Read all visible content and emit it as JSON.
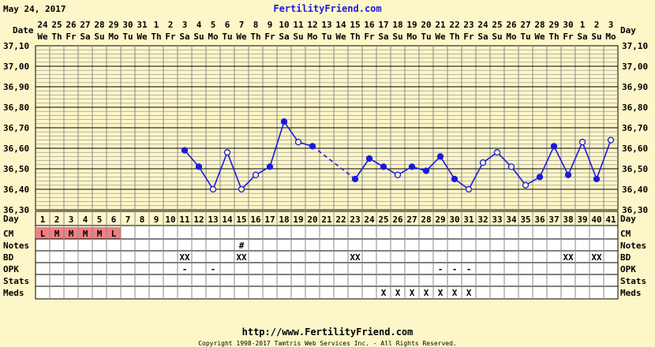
{
  "header": {
    "date": "May 24, 2017",
    "site": "FertilityFriend.com"
  },
  "footer": {
    "url": "http://www.FertilityFriend.com",
    "copyright": "Copyright 1998-2017 Tamtris Web Services Inc. - All Rights Reserved."
  },
  "labels": {
    "date": "Date",
    "day": "Day",
    "cm": "CM",
    "notes": "Notes",
    "bd": "BD",
    "opk": "OPK",
    "stats": "Stats",
    "meds": "Meds"
  },
  "colors": {
    "background": "#fdf6c8",
    "grid": "#8a8a8a",
    "line": "#1a1adc",
    "header_text": "#1a1adc",
    "cm_fill": "#f08080"
  },
  "columns": {
    "dates": [
      "24",
      "25",
      "26",
      "27",
      "28",
      "29",
      "30",
      "31",
      "1",
      "2",
      "3",
      "4",
      "5",
      "6",
      "7",
      "8",
      "9",
      "10",
      "11",
      "12",
      "13",
      "14",
      "15",
      "16",
      "17",
      "18",
      "19",
      "20",
      "21",
      "22",
      "23",
      "24",
      "25",
      "26",
      "27",
      "28",
      "29",
      "30",
      "1",
      "2",
      "3"
    ],
    "weekdays": [
      "We",
      "Th",
      "Fr",
      "Sa",
      "Su",
      "Mo",
      "Tu",
      "We",
      "Th",
      "Fr",
      "Sa",
      "Su",
      "Mo",
      "Tu",
      "We",
      "Th",
      "Fr",
      "Sa",
      "Su",
      "Mo",
      "Tu",
      "We",
      "Th",
      "Fr",
      "Sa",
      "Su",
      "Mo",
      "Tu",
      "We",
      "Th",
      "Fr",
      "Sa",
      "Su",
      "Mo",
      "Tu",
      "We",
      "Th",
      "Fr",
      "Sa",
      "Su",
      "Mo"
    ],
    "cycle_days": [
      "1",
      "2",
      "3",
      "4",
      "5",
      "6",
      "7",
      "8",
      "9",
      "10",
      "11",
      "12",
      "13",
      "14",
      "15",
      "16",
      "17",
      "18",
      "19",
      "20",
      "21",
      "22",
      "23",
      "24",
      "25",
      "26",
      "27",
      "28",
      "29",
      "30",
      "31",
      "32",
      "33",
      "34",
      "35",
      "36",
      "37",
      "38",
      "39",
      "40",
      "41"
    ]
  },
  "rows": {
    "cm": [
      "L",
      "M",
      "M",
      "M",
      "M",
      "L",
      "",
      "",
      "",
      "",
      "",
      "",
      "",
      "",
      "",
      "",
      "",
      "",
      "",
      "",
      "",
      "",
      "",
      "",
      "",
      "",
      "",
      "",
      "",
      "",
      "",
      "",
      "",
      "",
      "",
      "",
      "",
      "",
      "",
      "",
      ""
    ],
    "notes": [
      "",
      "",
      "",
      "",
      "",
      "",
      "",
      "",
      "",
      "",
      "",
      "",
      "",
      "",
      "#",
      "",
      "",
      "",
      "",
      "",
      "",
      "",
      "",
      "",
      "",
      "",
      "",
      "",
      "",
      "",
      "",
      "",
      "",
      "",
      "",
      "",
      "",
      "",
      "",
      "",
      ""
    ],
    "bd": [
      "",
      "",
      "",
      "",
      "",
      "",
      "",
      "",
      "",
      "",
      "XX",
      "",
      "",
      "",
      "XX",
      "",
      "",
      "",
      "",
      "",
      "",
      "",
      "XX",
      "",
      "",
      "",
      "",
      "",
      "",
      "",
      "",
      "",
      "",
      "",
      "",
      "",
      "",
      "XX",
      "",
      "XX",
      ""
    ],
    "opk": [
      "",
      "",
      "",
      "",
      "",
      "",
      "",
      "",
      "",
      "",
      "-",
      "",
      "-",
      "",
      "",
      "",
      "",
      "",
      "",
      "",
      "",
      "",
      "",
      "",
      "",
      "",
      "",
      "",
      "-",
      "-",
      "-",
      "",
      "",
      "",
      "",
      "",
      "",
      "",
      "",
      "",
      ""
    ],
    "stats": [
      "",
      "",
      "",
      "",
      "",
      "",
      "",
      "",
      "",
      "",
      "",
      "",
      "",
      "",
      "",
      "",
      "",
      "",
      "",
      "",
      "",
      "",
      "",
      "",
      "",
      "",
      "",
      "",
      "",
      "",
      "",
      "",
      "",
      "",
      "",
      "",
      "",
      "",
      "",
      "",
      ""
    ],
    "meds": [
      "",
      "",
      "",
      "",
      "",
      "",
      "",
      "",
      "",
      "",
      "",
      "",
      "",
      "",
      "",
      "",
      "",
      "",
      "",
      "",
      "",
      "",
      "",
      "",
      "X",
      "X",
      "X",
      "X",
      "X",
      "X",
      "X",
      "",
      "",
      "",
      "",
      "",
      "",
      "",
      "",
      "",
      ""
    ]
  },
  "chart_data": {
    "type": "line",
    "title": "",
    "xlabel": "Day",
    "ylabel": "",
    "x": [
      1,
      2,
      3,
      4,
      5,
      6,
      7,
      8,
      9,
      10,
      11,
      12,
      13,
      14,
      15,
      16,
      17,
      18,
      19,
      20,
      21,
      22,
      23,
      24,
      25,
      26,
      27,
      28,
      29,
      30,
      31,
      32,
      33,
      34,
      35,
      36,
      37,
      38,
      39,
      40,
      41
    ],
    "ylim": [
      36.3,
      37.1
    ],
    "y_ticks": [
      "37,10",
      "37,00",
      "36,90",
      "36,80",
      "36,70",
      "36,60",
      "36,50",
      "36,40",
      "36,30"
    ],
    "series": [
      {
        "values": [
          null,
          null,
          null,
          null,
          null,
          null,
          null,
          null,
          null,
          null,
          36.59,
          36.51,
          36.4,
          36.58,
          36.4,
          36.47,
          36.51,
          36.73,
          36.63,
          36.61,
          null,
          null,
          36.45,
          36.55,
          36.51,
          36.47,
          36.51,
          36.49,
          36.56,
          36.45,
          36.4,
          36.53,
          36.58,
          36.51,
          36.42,
          36.46,
          36.61,
          36.47,
          36.63,
          36.45,
          36.64
        ],
        "open": [
          false,
          false,
          false,
          false,
          false,
          false,
          false,
          false,
          false,
          false,
          false,
          false,
          true,
          true,
          true,
          true,
          false,
          false,
          true,
          false,
          false,
          false,
          false,
          false,
          false,
          true,
          false,
          false,
          false,
          false,
          true,
          true,
          true,
          true,
          true,
          false,
          false,
          false,
          true,
          false,
          true
        ],
        "dashed_segments": [
          [
            20,
            23
          ]
        ]
      }
    ],
    "grid": true
  }
}
